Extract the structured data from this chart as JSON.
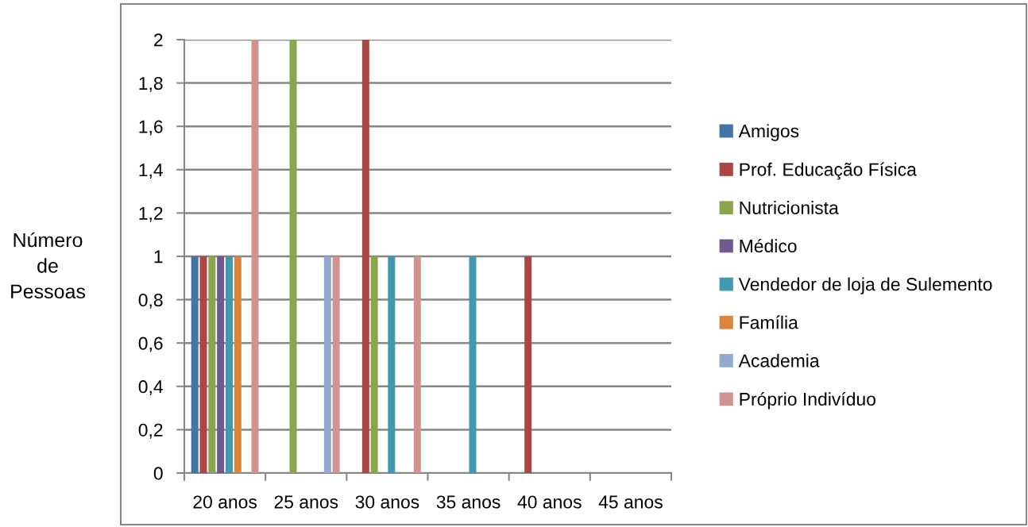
{
  "chart_data": {
    "type": "bar",
    "ylabel": "Número de Pessoas",
    "categories": [
      "20 anos",
      "25 anos",
      "30 anos",
      "35 anos",
      "40 anos",
      "45 anos"
    ],
    "series": [
      {
        "name": "Amigos",
        "color": "#4572a7",
        "values": [
          1,
          null,
          null,
          null,
          null,
          null
        ]
      },
      {
        "name": "Prof. Educação Física",
        "color": "#aa4643",
        "values": [
          1,
          null,
          2,
          null,
          1,
          null
        ]
      },
      {
        "name": "Nutricionista",
        "color": "#89a54e",
        "values": [
          1,
          2,
          1,
          null,
          null,
          null
        ]
      },
      {
        "name": "Médico",
        "color": "#71588f",
        "values": [
          1,
          null,
          null,
          null,
          null,
          null
        ]
      },
      {
        "name": "Vendedor de loja de Sulemento",
        "color": "#4198af",
        "values": [
          1,
          null,
          1,
          1,
          null,
          null
        ]
      },
      {
        "name": "Família",
        "color": "#db843d",
        "values": [
          1,
          null,
          null,
          null,
          null,
          null
        ]
      },
      {
        "name": "Academia",
        "color": "#93a9cf",
        "values": [
          null,
          1,
          null,
          null,
          null,
          null
        ]
      },
      {
        "name": "Próprio Indivíduo",
        "color": "#d19392",
        "values": [
          2,
          1,
          1,
          null,
          null,
          null
        ]
      }
    ],
    "ylim": [
      0,
      2
    ],
    "yticks": [
      0,
      {
        "value": 0.2,
        "label": "0,2"
      },
      {
        "value": 0.4,
        "label": "0,4"
      },
      {
        "value": 0.6,
        "label": "0,6"
      },
      {
        "value": 0.8,
        "label": "0,8"
      },
      1,
      {
        "value": 1.2,
        "label": "1,2"
      },
      {
        "value": 1.4,
        "label": "1,4"
      },
      {
        "value": 1.6,
        "label": "1,6"
      },
      {
        "value": 1.8,
        "label": "1,8"
      },
      2
    ],
    "grid": "y",
    "legend": "right"
  }
}
